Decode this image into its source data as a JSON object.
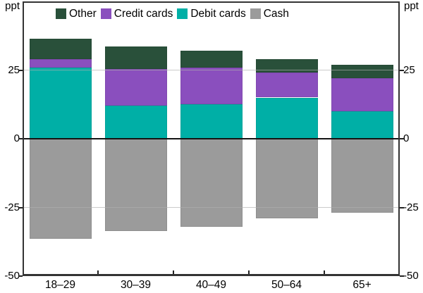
{
  "chart_data": {
    "type": "bar",
    "stacked": true,
    "title": "",
    "unit_left": "ppt",
    "unit_right": "ppt",
    "categories": [
      "18–29",
      "30–39",
      "40–49",
      "50–64",
      "65+"
    ],
    "series": [
      {
        "name": "Other",
        "color": "#29503A",
        "values": [
          7.5,
          8,
          6,
          5,
          5
        ]
      },
      {
        "name": "Credit cards",
        "color": "#8A4FBE",
        "values": [
          3,
          13.5,
          13.5,
          9,
          12
        ]
      },
      {
        "name": "Debit cards",
        "color": "#00AFA6",
        "values": [
          26,
          12,
          12.5,
          15,
          10
        ]
      },
      {
        "name": "Cash",
        "color": "#9B9B9B",
        "values": [
          -36.5,
          -33.5,
          -32,
          -29,
          -27
        ]
      }
    ],
    "ylim": [
      -50,
      50
    ],
    "yticks": [
      25,
      0,
      -25,
      -50
    ],
    "grid_values": [
      25,
      -25
    ],
    "grid": true,
    "legend_position": "top-left-inside",
    "zero_line": true
  },
  "colors": {
    "background": "#ffffff",
    "axis": "#333333",
    "gridline": "#c8c8c8",
    "zero_line": "#141414",
    "text": "#000000"
  }
}
